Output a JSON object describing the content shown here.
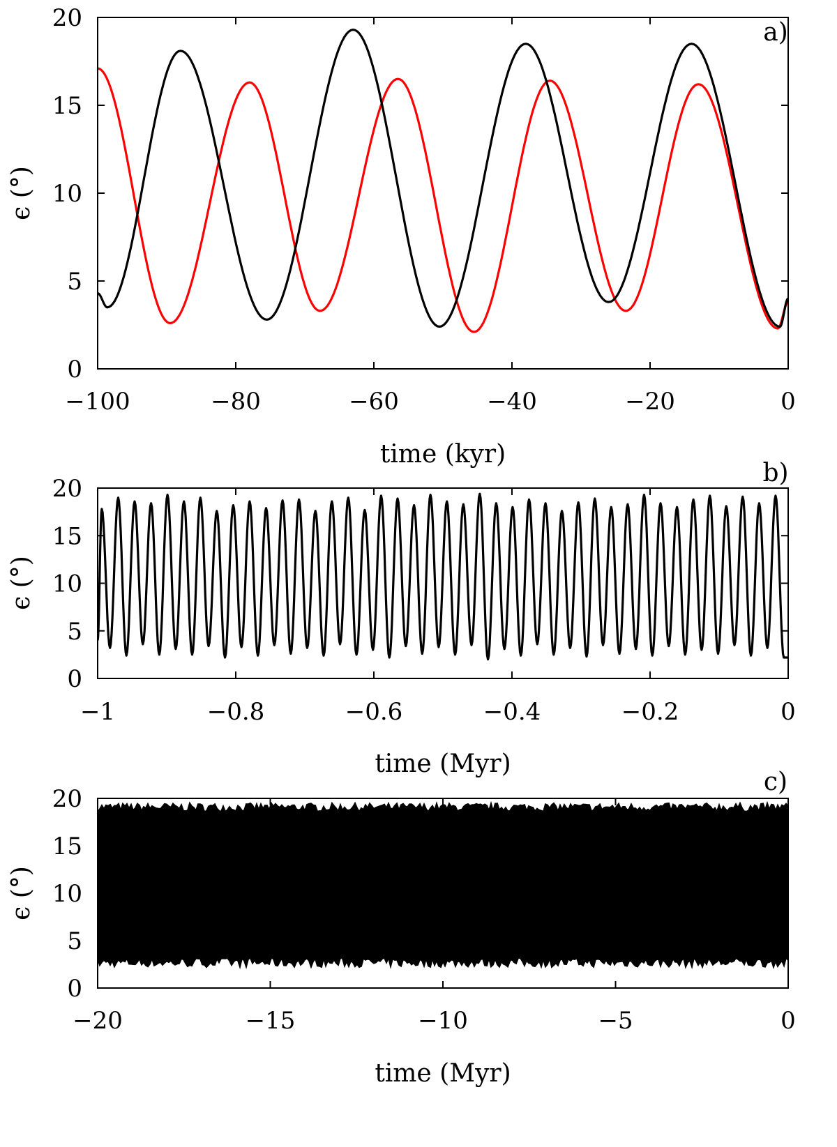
{
  "chart_data": [
    {
      "type": "line",
      "panel_label": "a)",
      "xlabel": "time (kyr)",
      "ylabel": "ϵ (°)",
      "xlim": [
        -100,
        0
      ],
      "ylim": [
        0,
        20
      ],
      "xticks": [
        -100,
        -80,
        -60,
        -40,
        -20,
        0
      ],
      "xtick_labels": [
        "−100",
        "−80",
        "−60",
        "−40",
        "−20",
        "0"
      ],
      "yticks": [
        0,
        5,
        10,
        15,
        20
      ],
      "ytick_labels": [
        "0",
        "5",
        "10",
        "15",
        "20"
      ],
      "grid": false,
      "series": [
        {
          "color": "#ff0000",
          "x": [
            -100,
            -89.5,
            -78,
            -67.8,
            -56.5,
            -45.5,
            -34.5,
            -23.5,
            -13,
            -1.5,
            0
          ],
          "y": [
            17.1,
            2.6,
            16.3,
            3.3,
            16.5,
            2.1,
            16.4,
            3.3,
            16.2,
            2.3,
            3.8
          ]
        },
        {
          "color": "#000000",
          "x": [
            -100,
            -98.6,
            -88,
            -75.5,
            -63,
            -50.5,
            -38,
            -26,
            -14,
            -1.2,
            0
          ],
          "y": [
            4.3,
            3.5,
            18.1,
            2.8,
            19.3,
            2.4,
            18.5,
            3.8,
            18.5,
            2.4,
            4.0
          ]
        }
      ]
    },
    {
      "type": "line",
      "panel_label": "b)",
      "xlabel": "time (Myr)",
      "ylabel": "ϵ (°)",
      "xlim": [
        -1,
        0
      ],
      "ylim": [
        0,
        20
      ],
      "xticks": [
        -1,
        -0.8,
        -0.6,
        -0.4,
        -0.2,
        0
      ],
      "xtick_labels": [
        "−1",
        "−0.8",
        "−0.6",
        "−0.4",
        "−0.2",
        "0"
      ],
      "yticks": [
        0,
        5,
        10,
        15,
        20
      ],
      "ytick_labels": [
        "0",
        "5",
        "10",
        "15",
        "20"
      ],
      "grid": false,
      "series": [
        {
          "color": "#000000",
          "period": 0.0238,
          "x_start": -1,
          "maxima": [
            17.8,
            19.0,
            18.6,
            18.4,
            19.3,
            18.6,
            19.0,
            17.6,
            18.2,
            18.6,
            17.9,
            18.7,
            18.8,
            17.6,
            18.6,
            19.0,
            17.7,
            19.2,
            18.9,
            18.2,
            19.3,
            18.6,
            18.3,
            19.4,
            18.4,
            18.0,
            18.8,
            18.4,
            17.6,
            18.5,
            18.9,
            18.0,
            18.3,
            19.3,
            18.4,
            18.0,
            18.8,
            19.2,
            18.1,
            19.1,
            18.4,
            19.2
          ],
          "minima": [
            3.2,
            2.4,
            3.6,
            2.5,
            3.1,
            2.5,
            3.4,
            2.2,
            3.3,
            2.4,
            3.5,
            2.6,
            3.2,
            2.4,
            3.6,
            2.5,
            3.0,
            2.2,
            3.4,
            2.6,
            3.3,
            2.5,
            3.5,
            2.0,
            3.1,
            2.4,
            3.6,
            2.5,
            3.2,
            2.3,
            3.5,
            2.6,
            3.1,
            2.4,
            3.4,
            2.5,
            3.0,
            2.6,
            3.5,
            2.4,
            3.2,
            2.2
          ]
        }
      ]
    },
    {
      "type": "line",
      "panel_label": "c)",
      "xlabel": "time (Myr)",
      "ylabel": "ϵ (°)",
      "xlim": [
        -20,
        0
      ],
      "ylim": [
        0,
        20
      ],
      "xticks": [
        -20,
        -15,
        -10,
        -5,
        0
      ],
      "xtick_labels": [
        "−20",
        "−15",
        "−10",
        "−5",
        "0"
      ],
      "yticks": [
        0,
        5,
        10,
        15,
        20
      ],
      "ytick_labels": [
        "0",
        "5",
        "10",
        "15",
        "20"
      ],
      "grid": false,
      "series": [
        {
          "color": "#000000",
          "period": 0.0238,
          "y_max_range": [
            18.6,
            19.5
          ],
          "y_min_range": [
            2.2,
            3.2
          ]
        }
      ]
    }
  ]
}
